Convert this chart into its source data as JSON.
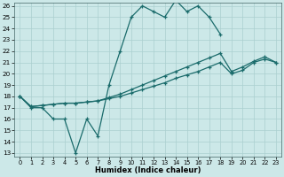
{
  "xlabel": "Humidex (Indice chaleur)",
  "background_color": "#cce8e8",
  "grid_color": "#aacfcf",
  "line_color": "#1a6b6b",
  "ylim_min": 13,
  "ylim_max": 26,
  "xlim_min": -0.5,
  "xlim_max": 23.5,
  "yticks": [
    13,
    14,
    15,
    16,
    17,
    18,
    19,
    20,
    21,
    22,
    23,
    24,
    25,
    26
  ],
  "xticks": [
    0,
    1,
    2,
    3,
    4,
    5,
    6,
    7,
    8,
    9,
    10,
    11,
    12,
    13,
    14,
    15,
    16,
    17,
    18,
    19,
    20,
    21,
    22,
    23
  ],
  "curve1_x": [
    0,
    1,
    2,
    3,
    4,
    5,
    6,
    7,
    8,
    9,
    10,
    11,
    12,
    13,
    14,
    15,
    16,
    17,
    18
  ],
  "curve1_y": [
    18,
    17,
    17,
    16,
    16,
    13,
    16,
    14.5,
    19,
    22,
    25,
    26,
    25.5,
    25,
    26.5,
    25.5,
    26,
    25,
    23.5
  ],
  "curve2_x": [
    0,
    1,
    2,
    3,
    4,
    5,
    6,
    7,
    8,
    9,
    10,
    11,
    12,
    13,
    14,
    15,
    16,
    17,
    18,
    19,
    20,
    21,
    22,
    23
  ],
  "curve2_y": [
    18,
    17.1,
    17.2,
    17.3,
    17.4,
    17.4,
    17.5,
    17.6,
    17.8,
    18.0,
    18.3,
    18.6,
    18.9,
    19.2,
    19.6,
    19.9,
    20.2,
    20.6,
    21.0,
    20.0,
    20.3,
    21.0,
    21.3,
    21.0
  ],
  "curve3_x": [
    0,
    1,
    2,
    3,
    4,
    5,
    6,
    7,
    8,
    9,
    10,
    11,
    12,
    13,
    14,
    15,
    16,
    17,
    18,
    19,
    20,
    21,
    22,
    23
  ],
  "curve3_y": [
    18,
    17.1,
    17.2,
    17.3,
    17.4,
    17.4,
    17.5,
    17.6,
    17.9,
    18.2,
    18.6,
    19.0,
    19.4,
    19.8,
    20.2,
    20.6,
    21.0,
    21.4,
    21.8,
    20.2,
    20.6,
    21.1,
    21.5,
    21.0
  ]
}
